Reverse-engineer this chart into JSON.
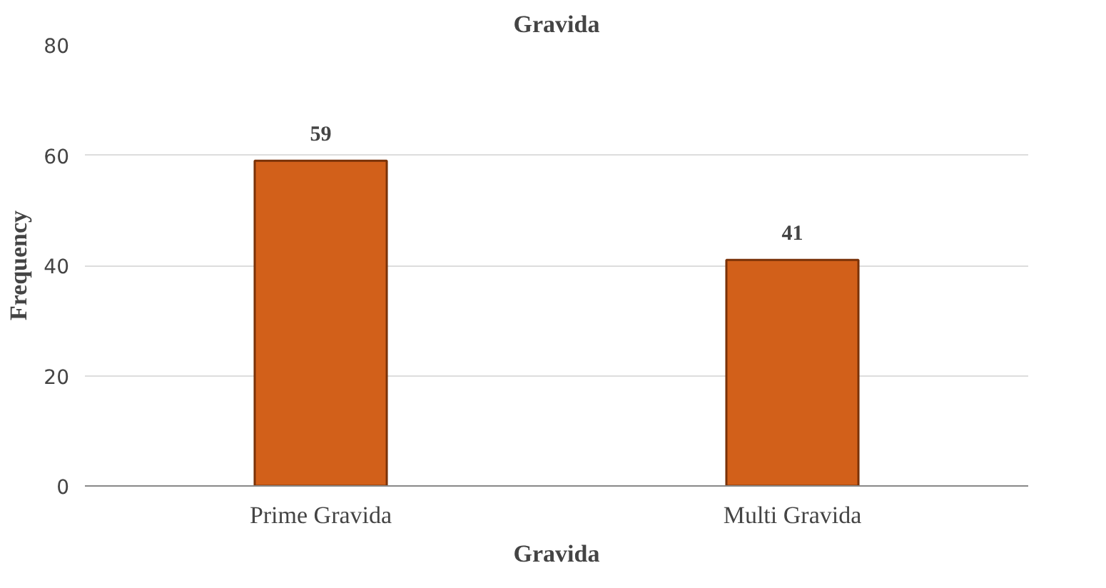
{
  "chart_data": {
    "type": "bar",
    "title": "Gravida",
    "xlabel": "Gravida",
    "ylabel": "Frequency",
    "categories": [
      "Prime Gravida",
      "Multi Gravida"
    ],
    "values": [
      59,
      41
    ],
    "color": "#d2601a",
    "ylim": [
      0,
      80
    ],
    "yticks": [
      0,
      20,
      40,
      60,
      80
    ],
    "grid": "y",
    "data_labels": true
  }
}
